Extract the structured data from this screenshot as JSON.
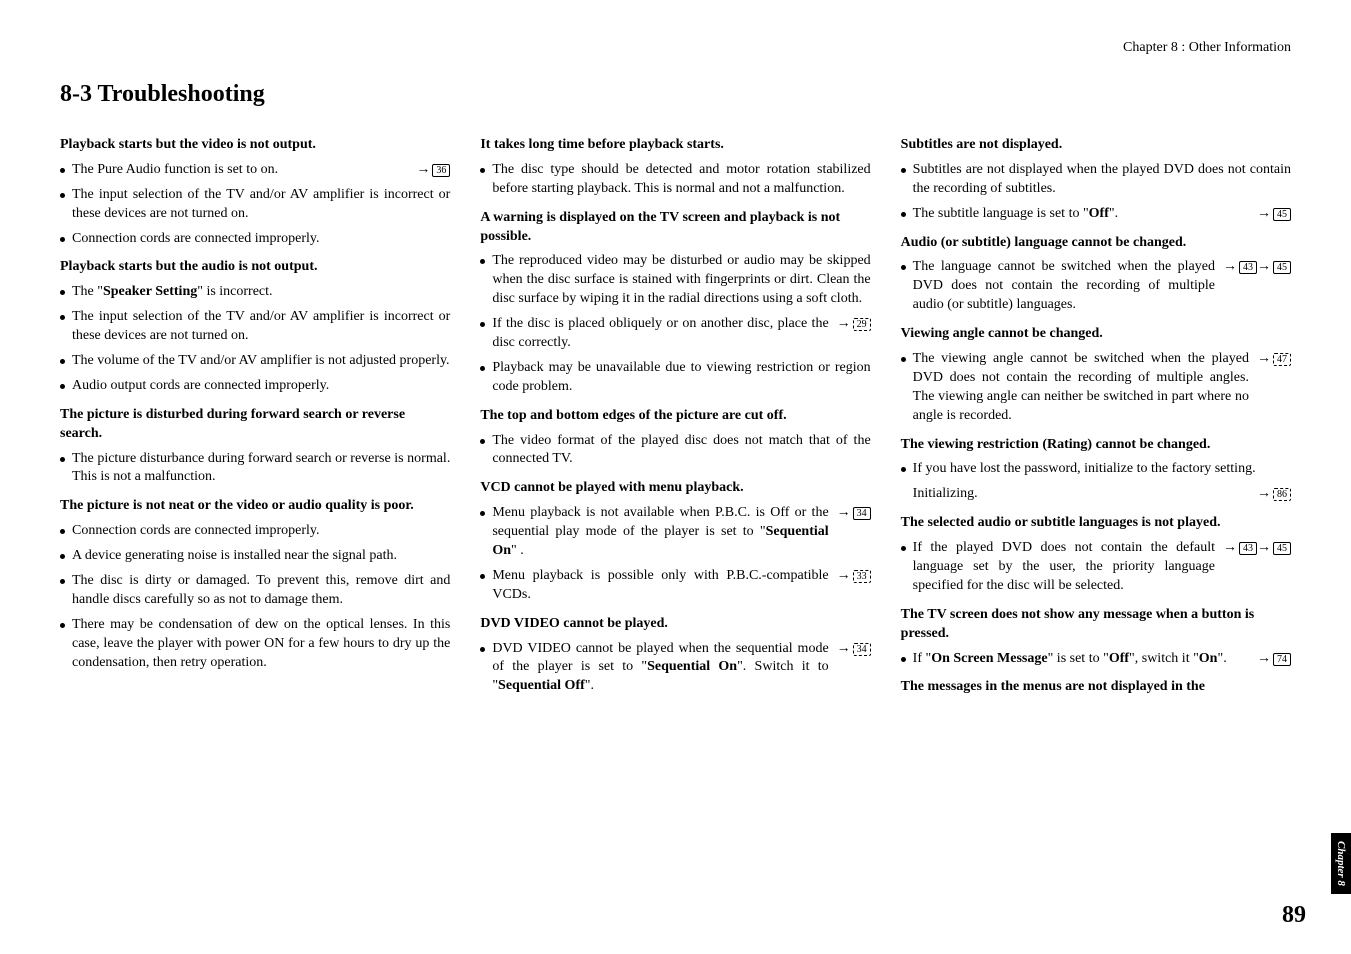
{
  "header": {
    "chapter_label": "Chapter 8 : Other Information"
  },
  "title": "8-3  Troubleshooting",
  "col1": {
    "h1": "Playback starts but the video is not output.",
    "b1": "The Pure Audio function is set to on.",
    "r1": "36",
    "b2": "The input selection of the TV and/or AV amplifier is incorrect or these devices are not turned on.",
    "b3": "Connection cords are connected improperly.",
    "h2": "Playback starts but the audio is not output.",
    "b4a": " The \"",
    "b4b": "Speaker Setting",
    "b4c": "\" is incorrect.",
    "b5": "The input selection of the TV and/or AV amplifier is incorrect or these devices are not turned on.",
    "b6": "The volume of the TV and/or AV amplifier is not adjusted properly.",
    "b7": "Audio output cords are connected improperly.",
    "h3": "The picture is disturbed during forward search or reverse search.",
    "b8": "The picture disturbance during forward search or reverse is normal. This is not a malfunction.",
    "h4": "The picture is not neat or the video or audio quality is poor.",
    "b9": "Connection cords are connected improperly.",
    "b10": "A device generating noise is installed near the signal path.",
    "b11": "The disc is dirty or damaged. To prevent this, remove dirt and handle discs carefully so as not to damage them.",
    "b12": "There may be condensation of dew on the optical lenses. In this case, leave the player with power ON for a few hours to dry up the condensation, then retry operation."
  },
  "col2": {
    "h1": "It takes long time before playback starts.",
    "b1": "The disc type should be detected and motor rotation stabilized before  starting playback. This is normal and not a malfunction.",
    "h2": "A warning is displayed on the TV screen and playback is not possible.",
    "b2": "The reproduced video may be disturbed or audio may be skipped when the disc surface is stained with fingerprints or dirt. Clean the disc surface by wiping it in the radial directions using a soft cloth.",
    "b3": "If the disc is placed obliquely or on another disc, place the disc correctly.",
    "r3": "29",
    "b4": "Playback may be unavailable due to viewing restriction or region code problem.",
    "h3": "The top and bottom edges of the picture are cut off.",
    "b5": "The video format of the played disc does not match that of the connected TV.",
    "h4": "VCD cannot be played with menu playback.",
    "b6a": "Menu playback is not available when P.B.C. is Off or the sequential play mode of the player is set to \"",
    "b6b": "Sequential On",
    "b6c": "\" .",
    "r6": "34",
    "b7": "Menu playback is possible only with P.B.C.-compatible VCDs.",
    "r7": "33",
    "h5": "DVD VIDEO cannot be played.",
    "b8a": "DVD VIDEO cannot be played when the sequential mode of the player is set to \"",
    "b8b": "Sequential On",
    "b8c": "\". Switch it to \"",
    "b8d": "Sequential Off",
    "b8e": "\".",
    "r8": "34"
  },
  "col3": {
    "h1": "Subtitles are not displayed.",
    "b1": "Subtitles are not displayed when the played DVD does not contain the recording of subtitles.",
    "b2a": "The subtitle language is set to \"",
    "b2b": "Off",
    "b2c": "\".",
    "r2": "45",
    "h2": "Audio (or subtitle) language cannot be changed.",
    "b3": "The language cannot be switched when the played DVD does not contain the recording of multiple audio (or subtitle) languages.",
    "r3a": "43",
    "r3b": "45",
    "h3": "Viewing angle cannot be changed.",
    "b4": "The viewing angle cannot be switched when the played DVD does not contain the recording of multiple angles. The viewing angle can neither be switched in part where no angle is recorded.",
    "r4": "47",
    "h4": "The viewing restriction (Rating) cannot be changed.",
    "b5": "If you have lost the password, initialize to the factory setting.",
    "b5x": "Initializing.",
    "r5": "86",
    "h5": "The selected audio or subtitle languages is not played.",
    "b6": "If the played DVD does not contain the default language set by the user, the priority language specified for the disc will be selected.",
    "r6a": "43",
    "r6b": "45",
    "h6": "The TV screen does not show any message when a button is pressed.",
    "b7a": "If \"",
    "b7b": "On Screen Message",
    "b7c": "\" is set to \"",
    "b7d": "Off",
    "b7e": "\", switch it \"",
    "b7f": "On",
    "b7g": "\".",
    "r7": "74",
    "h7": "The messages in the menus are not displayed in the"
  },
  "footer": {
    "tab": "Chapter 8",
    "page": "89"
  }
}
